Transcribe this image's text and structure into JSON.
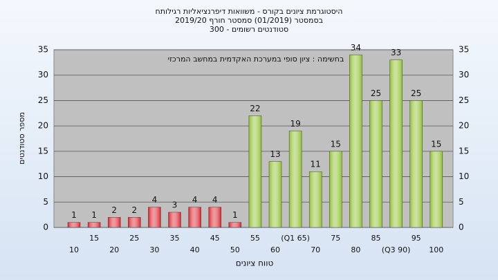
{
  "chart_data": {
    "type": "bar",
    "title": [
      "היסטוגרמת ציונים בקורס - משוואות דיפרנציאליות רגילותח",
      "בסמסטר  (01/2019)  סמסטר חורף 2019/20",
      "סטודנטים רשומים - 300"
    ],
    "annotation": "בחשימה : ציון סופי במערכת האקדמית במחשב המרכזי",
    "x_label": "טווח ציונים",
    "y_label": "מספר סטודנטים",
    "categories": [
      "10",
      "15",
      "20",
      "25",
      "30",
      "35",
      "40",
      "45",
      "50",
      "55",
      "60",
      "(Q1 65)",
      "70",
      "75",
      "80",
      "85",
      "(Q3 90)",
      "95",
      "100"
    ],
    "values": [
      1,
      1,
      2,
      2,
      4,
      3,
      4,
      4,
      1,
      22,
      13,
      19,
      11,
      15,
      34,
      25,
      33,
      25,
      15
    ],
    "colors": [
      "#d8202a",
      "#d8202a",
      "#d8202a",
      "#d8202a",
      "#d8202a",
      "#d8202a",
      "#d8202a",
      "#d8202a",
      "#d8202a",
      "#8cbf2a",
      "#8cbf2a",
      "#8cbf2a",
      "#8cbf2a",
      "#8cbf2a",
      "#8cbf2a",
      "#8cbf2a",
      "#8cbf2a",
      "#8cbf2a",
      "#8cbf2a"
    ],
    "ylim": [
      0,
      35
    ],
    "yticks": [
      0,
      5,
      10,
      15,
      20,
      25,
      30,
      35
    ],
    "grid": true
  }
}
